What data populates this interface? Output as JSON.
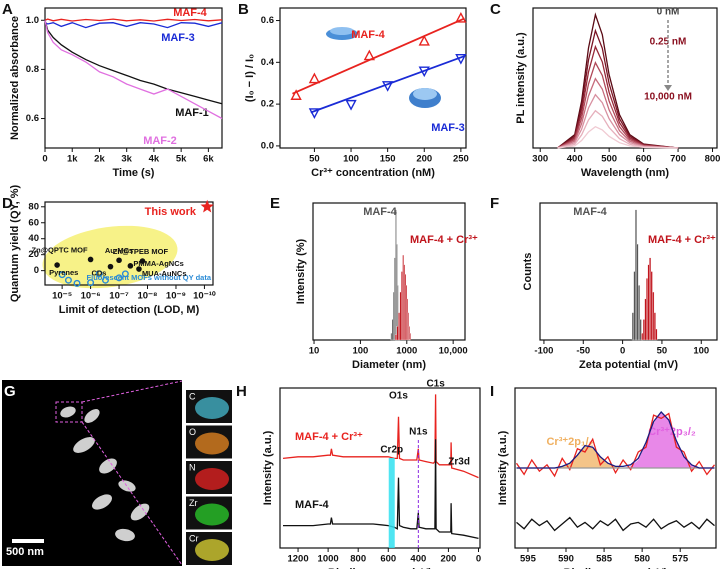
{
  "chart_data": [
    {
      "panel": "A",
      "type": "line",
      "x_label": "Time (s)",
      "y_label": "Normalized absorbance",
      "x": [
        0,
        100,
        300,
        600,
        1000,
        1500,
        2000,
        2500,
        3000,
        3500,
        4000,
        4500,
        5000,
        5500,
        6000,
        6500
      ],
      "xlim": [
        0,
        6500
      ],
      "xticks": [
        0,
        {
          "value": 1000,
          "label": "1k"
        },
        {
          "value": 2000,
          "label": "2k"
        },
        {
          "value": 3000,
          "label": "3k"
        },
        {
          "value": 4000,
          "label": "4k"
        },
        {
          "value": 5000,
          "label": "5k"
        },
        {
          "value": 6000,
          "label": "6k"
        }
      ],
      "ylim": [
        0.48,
        1.05
      ],
      "yticks": [
        0.6,
        0.8,
        {
          "value": 1,
          "label": "1.0"
        }
      ],
      "series": [
        {
          "name": "MAF-4",
          "color": "#e8231f",
          "values": [
            1,
            1.005,
            0.998,
            1.004,
            0.997,
            1.003,
            0.999,
            1.005,
            0.998,
            1.002,
            0.997,
            1.004,
            0.999,
            1.003,
            0.998,
            1.002
          ]
        },
        {
          "name": "MAF-3",
          "color": "#1a2bd6",
          "values": [
            0.99,
            0.985,
            0.99,
            0.975,
            0.99,
            0.97,
            0.988,
            0.99,
            0.975,
            0.99,
            0.985,
            0.97,
            0.99,
            0.988,
            0.975,
            0.99
          ]
        },
        {
          "name": "MAF-1",
          "color": "#111111",
          "values": [
            1,
            0.96,
            0.93,
            0.9,
            0.87,
            0.84,
            0.815,
            0.795,
            0.775,
            0.755,
            0.74,
            0.72,
            0.705,
            0.69,
            0.675,
            0.66
          ]
        },
        {
          "name": "MAF-2",
          "color": "#e070e0",
          "values": [
            1,
            0.95,
            0.91,
            0.88,
            0.86,
            0.83,
            0.79,
            0.77,
            0.74,
            0.72,
            0.7,
            0.72,
            0.69,
            0.66,
            0.63,
            0.6
          ]
        }
      ]
    },
    {
      "panel": "B",
      "type": "scatter",
      "x_label": "Cr³⁺ concentration (nM)",
      "y_label": "(I₀ − I) / I₀",
      "xlim": [
        3,
        257
      ],
      "xticks": [
        50,
        100,
        150,
        200,
        250
      ],
      "ylim": [
        -0.01,
        0.66
      ],
      "yticks": [
        {
          "value": 0,
          "label": "0.0"
        },
        0.2,
        0.4,
        0.6
      ],
      "series": [
        {
          "name": "MAF-4",
          "color": "#e8231f",
          "marker": "triangle-up",
          "x": [
            25,
            50,
            125,
            200,
            250
          ],
          "values": [
            0.24,
            0.32,
            0.43,
            0.5,
            0.61
          ],
          "fit_x": [
            20,
            255
          ],
          "fit_values": [
            0.25,
            0.61
          ]
        },
        {
          "name": "MAF-3",
          "color": "#1a2bd6",
          "marker": "triangle-down",
          "x": [
            50,
            100,
            150,
            200,
            250
          ],
          "values": [
            0.16,
            0.2,
            0.29,
            0.36,
            0.42
          ],
          "fit_x": [
            45,
            255
          ],
          "fit_values": [
            0.16,
            0.43
          ]
        }
      ]
    },
    {
      "panel": "C",
      "type": "line",
      "x_label": "Wavelength (nm)",
      "y_label": "PL intensity (a.u.)",
      "x": [
        350,
        400,
        420,
        440,
        460,
        480,
        500,
        530,
        560,
        600,
        700
      ],
      "xlim": [
        279,
        813
      ],
      "xticks": [
        300,
        400,
        500,
        600,
        700,
        800
      ],
      "ylim": [
        0,
        1.05
      ],
      "annotations": [
        "0 nM",
        "0.25 nM",
        "10,000 nM"
      ],
      "series": [
        {
          "color": "#5a0a14",
          "values": [
            0,
            0.1,
            0.35,
            0.75,
            1,
            0.85,
            0.55,
            0.25,
            0.1,
            0.03,
            0
          ]
        },
        {
          "color": "#7a1424",
          "values": [
            0,
            0.088,
            0.308,
            0.66,
            0.88,
            0.748,
            0.484,
            0.22,
            0.088,
            0.026,
            0
          ]
        },
        {
          "color": "#962838",
          "values": [
            0,
            0.076,
            0.266,
            0.57,
            0.76,
            0.646,
            0.418,
            0.19,
            0.076,
            0.023,
            0
          ]
        },
        {
          "color": "#b04858",
          "values": [
            0,
            0.064,
            0.224,
            0.48,
            0.64,
            0.544,
            0.352,
            0.16,
            0.064,
            0.019,
            0
          ]
        },
        {
          "color": "#c66c7c",
          "values": [
            0,
            0.052,
            0.182,
            0.39,
            0.52,
            0.442,
            0.286,
            0.13,
            0.052,
            0.016,
            0
          ]
        },
        {
          "color": "#d890a0",
          "values": [
            0,
            0.04,
            0.14,
            0.3,
            0.4,
            0.34,
            0.22,
            0.1,
            0.04,
            0.012,
            0
          ]
        },
        {
          "color": "#e6b0bc",
          "values": [
            0,
            0.028,
            0.098,
            0.21,
            0.28,
            0.238,
            0.154,
            0.07,
            0.028,
            0.008,
            0
          ]
        },
        {
          "color": "#f0cad2",
          "values": [
            0,
            0.016,
            0.056,
            0.12,
            0.16,
            0.136,
            0.088,
            0.04,
            0.016,
            0.005,
            0
          ]
        }
      ]
    },
    {
      "panel": "D",
      "type": "scatter",
      "x_label": "Limit of detection (LOD, M)",
      "y_label": "Quantum yield (QY, %)",
      "log_x": true,
      "xlim": [
        4e-05,
        5e-11
      ],
      "xticks": [
        {
          "value": 1e-05,
          "label": "10⁻⁵"
        },
        {
          "value": 1e-06,
          "label": "10⁻⁶"
        },
        {
          "value": 1e-07,
          "label": "10⁻⁷"
        },
        {
          "value": 1e-08,
          "label": "10⁻⁸"
        },
        {
          "value": 1e-09,
          "label": "10⁻⁹"
        },
        {
          "value": 1e-10,
          "label": "10⁻¹⁰"
        }
      ],
      "ylim": [
        -18,
        86
      ],
      "yticks": [
        0,
        20,
        40,
        60,
        80
      ],
      "series": [
        {
          "name": "This work",
          "color": "#e8231f",
          "marker": "star",
          "x": [
            8e-11
          ],
          "values": [
            80
          ]
        },
        {
          "name": "Fluorescent MOFs without QY data",
          "color": "#2a8bd6",
          "marker": "open-circle",
          "x": [
            1e-05,
            6e-06,
            3e-06,
            1e-06,
            5e-07,
            3e-07,
            1e-07,
            6e-08
          ],
          "values": [
            -5,
            -12,
            -16,
            -15,
            -4,
            -12,
            -9,
            -4
          ]
        },
        {
          "color": "#111111",
          "marker": "dot",
          "x": [
            1.5e-05,
            1e-06,
            1e-07,
            1.5e-08,
            2e-07,
            4e-08,
            2e-08
          ],
          "values": [
            7,
            14,
            13,
            12,
            5,
            6,
            2
          ],
          "point_labels": [
            "Pyrenes",
            "Zn@QPTC MOF",
            "Au-MCs",
            "Zn@TPEB MOF",
            "CDs",
            "PMMA-AgNCs",
            "MUA-AuNCs"
          ]
        }
      ]
    },
    {
      "panel": "E",
      "type": "histogram",
      "x_label": "Diameter (nm)",
      "y_label": "Intensity (%)",
      "log_x": true,
      "xlim": [
        9.5,
        18000
      ],
      "xticks": [
        10,
        100,
        1000,
        {
          "value": 10000,
          "label": "10,000"
        }
      ],
      "ylim": [
        0,
        100
      ],
      "series": [
        {
          "name": "MAF-4",
          "color": "#555555",
          "bins": [
            450,
            480,
            510,
            540,
            570,
            600,
            630,
            660,
            690,
            720
          ],
          "values": [
            5,
            15,
            35,
            60,
            95,
            70,
            40,
            15,
            5
          ]
        },
        {
          "name": "MAF-4 + Cr³⁺",
          "color": "#c0141c",
          "bins": [
            560,
            610,
            660,
            710,
            760,
            810,
            860,
            910,
            960,
            1010,
            1060,
            1110,
            1160,
            1210
          ],
          "values": [
            4,
            10,
            20,
            35,
            50,
            62,
            55,
            48,
            40,
            30,
            20,
            10,
            5
          ]
        }
      ]
    },
    {
      "panel": "F",
      "type": "histogram",
      "x_label": "Zeta potential (mV)",
      "y_label": "Counts",
      "xlim": [
        -105,
        120
      ],
      "xticks": [
        -100,
        -50,
        0,
        50,
        100
      ],
      "ylim": [
        0,
        100
      ],
      "series": [
        {
          "name": "MAF-4",
          "color": "#555555",
          "bins": [
            12,
            14,
            16,
            18,
            20,
            22,
            24,
            26
          ],
          "values": [
            20,
            50,
            95,
            70,
            40,
            15,
            5
          ]
        },
        {
          "name": "MAF-4 + Cr³⁺",
          "color": "#c0141c",
          "bins": [
            24,
            26,
            28,
            30,
            32,
            34,
            36,
            38,
            40,
            42,
            44
          ],
          "values": [
            5,
            15,
            30,
            45,
            55,
            60,
            50,
            35,
            20,
            8
          ]
        }
      ]
    },
    {
      "panel": "G",
      "type": "image",
      "scale_bar": "500 nm",
      "tiles": [
        {
          "label": "C",
          "color": "#3fa6b8"
        },
        {
          "label": "O",
          "color": "#d07a20"
        },
        {
          "label": "N",
          "color": "#d02020"
        },
        {
          "label": "Zr",
          "color": "#28b828"
        },
        {
          "label": "Cr",
          "color": "#c8c030"
        }
      ]
    },
    {
      "panel": "H",
      "type": "line",
      "x_label": "Binding energy (eV)",
      "y_label": "Intensity (a.u.)",
      "x": [
        1300,
        1200,
        1100,
        1000,
        985,
        978,
        970,
        900,
        800,
        700,
        600,
        560,
        540,
        532,
        525,
        500,
        450,
        410,
        400,
        395,
        350,
        300,
        290,
        285,
        282,
        260,
        200,
        184,
        182,
        178,
        100,
        0
      ],
      "xlim": [
        1320,
        -10
      ],
      "xticks": [
        1200,
        1000,
        800,
        600,
        400,
        200,
        0
      ],
      "ylim": [
        0,
        100
      ],
      "annotations": [
        {
          "text": "Cr2p",
          "x": 577
        },
        {
          "text": "O1s",
          "x": 532
        },
        {
          "text": "N1s",
          "x": 400
        },
        {
          "text": "C1s",
          "x": 285
        },
        {
          "text": "Zr3d",
          "x": 182
        }
      ],
      "series": [
        {
          "name": "MAF-4 + Cr³⁺",
          "color": "#e8231f",
          "values": [
            56,
            57,
            57,
            58,
            58,
            62,
            58,
            57,
            57,
            57,
            57,
            56,
            56,
            82,
            56,
            55,
            55,
            55,
            62,
            55,
            54,
            53,
            54,
            96,
            54,
            52,
            52,
            52,
            66,
            50,
            48,
            44
          ]
        },
        {
          "name": "MAF-4",
          "color": "#111111",
          "values": [
            14,
            14,
            14,
            15,
            15,
            19,
            15,
            15,
            15,
            15,
            14,
            13,
            12,
            44,
            14,
            13,
            12,
            12,
            22,
            13,
            12,
            12,
            12,
            68,
            12,
            10,
            10,
            10,
            28,
            9,
            8,
            6
          ]
        }
      ]
    },
    {
      "panel": "I",
      "type": "line",
      "x_label": "Binding energy (eV)",
      "y_label": "Intensity (a.u.)",
      "x": [
        596.5,
        595.5,
        594.5,
        593.5,
        592.5,
        591.5,
        590.5,
        589.5,
        588.5,
        587.5,
        586.5,
        585.5,
        584.5,
        583.5,
        582.5,
        581.5,
        580.5,
        579.5,
        578.5,
        577.5,
        576.5,
        575.5,
        574.5,
        573.5,
        572.5,
        571.5,
        570.5
      ],
      "xlim": [
        596.7,
        570.3
      ],
      "xticks": [
        595,
        590,
        585,
        580,
        575
      ],
      "ylim": [
        0,
        100
      ],
      "series": [
        {
          "name": "Cr³⁺2p₁/₂",
          "color": "#f0b060",
          "fill": true,
          "values": [
            50,
            50,
            50,
            50,
            50,
            50,
            51,
            53,
            58,
            64,
            63,
            57,
            53,
            51,
            50,
            50,
            50,
            50,
            50,
            50,
            50,
            50,
            50,
            50,
            50,
            50,
            50
          ]
        },
        {
          "name": "Cr³⁺2p₃/₂",
          "color": "#e060e0",
          "fill": true,
          "values": [
            50,
            50,
            50,
            50,
            50,
            50,
            50,
            50,
            50,
            50,
            50,
            50,
            50,
            50,
            50,
            51,
            55,
            65,
            78,
            85,
            80,
            67,
            57,
            52,
            50,
            50,
            50
          ]
        },
        {
          "color": "#e8231f",
          "values": [
            53,
            46,
            55,
            48,
            52,
            45,
            56,
            49,
            62,
            60,
            68,
            52,
            57,
            47,
            55,
            49,
            60,
            63,
            83,
            81,
            84,
            63,
            60,
            48,
            54,
            46,
            52
          ]
        },
        {
          "color": "#999999",
          "values": [
            50,
            50,
            50,
            50,
            50,
            50,
            50,
            50,
            50,
            50,
            50,
            50,
            50,
            50,
            50,
            50,
            50,
            50,
            50,
            50,
            50,
            50,
            50,
            50,
            50,
            50,
            50
          ]
        },
        {
          "color": "#1a1a80",
          "values": [
            50,
            50,
            50,
            50,
            50,
            50,
            51,
            53,
            58,
            64,
            63,
            57,
            53,
            51,
            51,
            52,
            56,
            66,
            79,
            85,
            80,
            67,
            57,
            52,
            50,
            50,
            50
          ]
        },
        {
          "color": "#111111",
          "values": [
            16,
            12,
            18,
            14,
            17,
            11,
            15,
            19,
            13,
            16,
            12,
            17,
            14,
            18,
            11,
            15,
            16,
            13,
            18,
            12,
            15,
            17,
            13,
            16,
            12,
            18,
            14
          ]
        }
      ]
    }
  ]
}
